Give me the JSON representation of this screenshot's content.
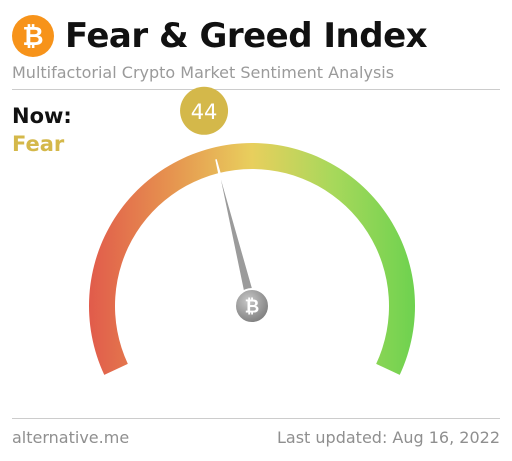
{
  "header": {
    "logo_glyph": "₿",
    "title": "Fear & Greed Index",
    "subtitle": "Multifactorial Crypto Market Sentiment Analysis"
  },
  "now": {
    "label": "Now:",
    "classification": "Fear",
    "value": "44",
    "value_number": 44,
    "classification_color": "#d4b84a"
  },
  "gauge": {
    "min": 0,
    "max": 100,
    "needle_value": 44,
    "hub_glyph": "₿",
    "colors": [
      "#e15b4b",
      "#e6934f",
      "#e8cf5d",
      "#a7d85b",
      "#6ed24f"
    ]
  },
  "footer": {
    "source": "alternative.me",
    "last_updated": "Last updated: Aug 16, 2022"
  },
  "icons": {
    "header_logo": "bitcoin-icon",
    "needle_hub": "bitcoin-icon"
  }
}
